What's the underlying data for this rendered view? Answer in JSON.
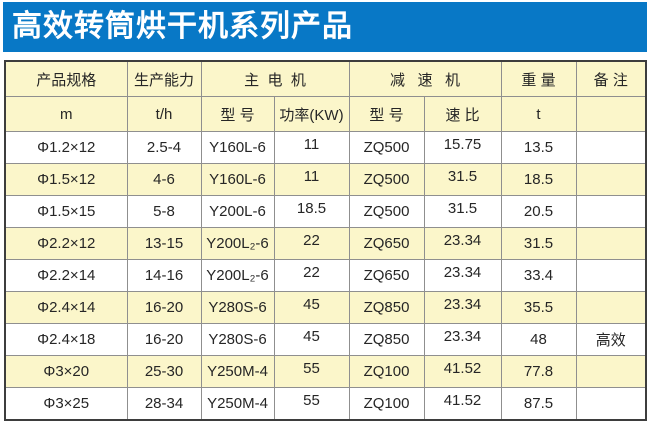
{
  "banner": {
    "title": "高效转筒烘干机系列产品",
    "bg_color": "#0878c6",
    "text_color": "#ffffff"
  },
  "table": {
    "colors": {
      "header_bg": "#fbf6ca",
      "row_bg": "#ffffff",
      "row_alt_bg": "#fbf6ca",
      "border_outer": "#3d3d3d",
      "border_inner": "#8f8f8f"
    },
    "header": {
      "col_spec": "产品规格",
      "col_capacity": "生产能力",
      "group_motor": "主  电  机",
      "group_reducer": "减   速   机",
      "col_weight": "重 量",
      "col_remark": "备 注",
      "unit_spec": "m",
      "unit_capacity": "t/h",
      "motor_model": "型 号",
      "motor_power": "功率(KW)",
      "reducer_model": "型 号",
      "reducer_ratio": "速 比",
      "unit_weight": "t",
      "unit_remark": ""
    },
    "columns_keys": [
      "spec",
      "capacity",
      "motor_model",
      "motor_power",
      "reducer_model",
      "reducer_ratio",
      "weight",
      "remark"
    ],
    "rows": [
      [
        "Φ1.2×12",
        "2.5-4",
        "Y160L-6",
        "11",
        "ZQ500",
        "15.75",
        "13.5",
        ""
      ],
      [
        "Φ1.5×12",
        "4-6",
        "Y160L-6",
        "11",
        "ZQ500",
        "31.5",
        "18.5",
        ""
      ],
      [
        "Φ1.5×15",
        "5-8",
        "Y200L-6",
        "18.5",
        "ZQ500",
        "31.5",
        "20.5",
        ""
      ],
      [
        "Φ2.2×12",
        "13-15",
        "Y200L₂-6",
        "22",
        "ZQ650",
        "23.34",
        "31.5",
        ""
      ],
      [
        "Φ2.2×14",
        "14-16",
        "Y200L₂-6",
        "22",
        "ZQ650",
        "23.34",
        "33.4",
        ""
      ],
      [
        "Φ2.4×14",
        "16-20",
        "Y280S-6",
        "45",
        "ZQ850",
        "23.34",
        "35.5",
        ""
      ],
      [
        "Φ2.4×18",
        "16-20",
        "Y280S-6",
        "45",
        "ZQ850",
        "23.34",
        "48",
        "高效"
      ],
      [
        "Φ3×20",
        "25-30",
        "Y250M-4",
        "55",
        "ZQ100",
        "41.52",
        "77.8",
        ""
      ],
      [
        "Φ3×25",
        "28-34",
        "Y250M-4",
        "55",
        "ZQ100",
        "41.52",
        "87.5",
        ""
      ]
    ]
  }
}
